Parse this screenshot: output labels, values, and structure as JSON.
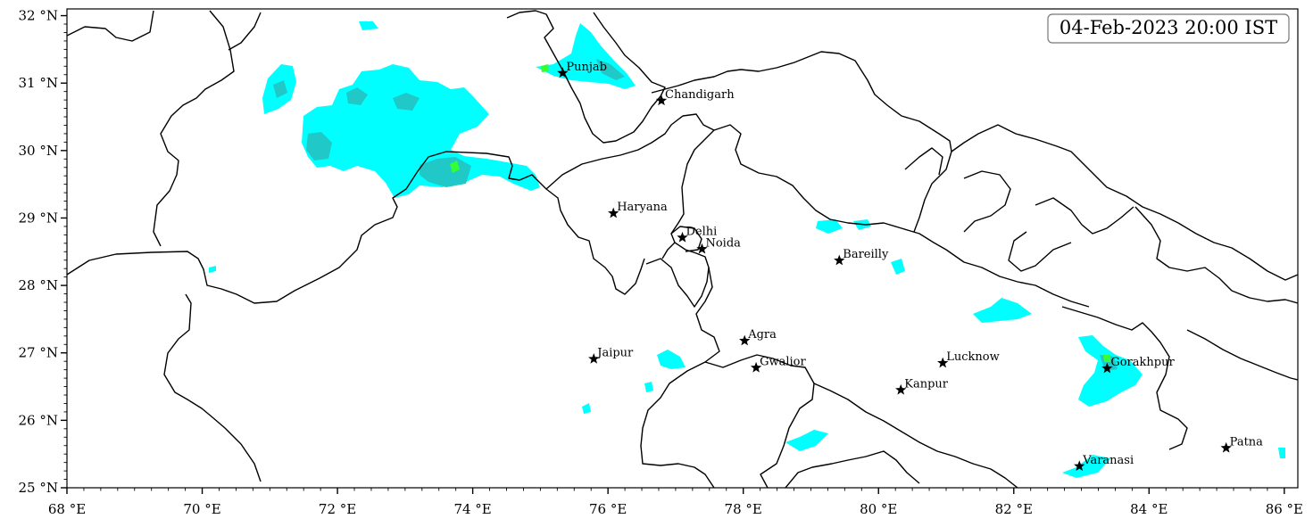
{
  "timestamp": "04-Feb-2023 20:00 IST",
  "colors": {
    "light_precip": "#00ffff",
    "moderate_precip": "#20c8c8",
    "heavy_precip": "#33ff33",
    "border": "#000000",
    "city_marker": "#000000"
  },
  "axes": {
    "lon_range": [
      68,
      86.2
    ],
    "lat_range": [
      25,
      32.1
    ],
    "x_ticks": [
      {
        "value": 68,
        "label": "68 °E"
      },
      {
        "value": 70,
        "label": "70 °E"
      },
      {
        "value": 72,
        "label": "72 °E"
      },
      {
        "value": 74,
        "label": "74 °E"
      },
      {
        "value": 76,
        "label": "76 °E"
      },
      {
        "value": 78,
        "label": "78 °E"
      },
      {
        "value": 80,
        "label": "80 °E"
      },
      {
        "value": 82,
        "label": "82 °E"
      },
      {
        "value": 84,
        "label": "84 °E"
      },
      {
        "value": 86,
        "label": "86 °E"
      }
    ],
    "y_ticks": [
      {
        "value": 25,
        "label": "25 °N"
      },
      {
        "value": 26,
        "label": "26 °N"
      },
      {
        "value": 27,
        "label": "27 °N"
      },
      {
        "value": 28,
        "label": "28 °N"
      },
      {
        "value": 29,
        "label": "29 °N"
      },
      {
        "value": 30,
        "label": "30 °N"
      },
      {
        "value": 31,
        "label": "31 °N"
      },
      {
        "value": 32,
        "label": "32 °N"
      }
    ]
  },
  "cities": [
    {
      "name": "Punjab",
      "lon": 75.33,
      "lat": 31.15
    },
    {
      "name": "Chandigarh",
      "lon": 76.79,
      "lat": 30.74
    },
    {
      "name": "Haryana",
      "lon": 76.08,
      "lat": 29.07
    },
    {
      "name": "Delhi",
      "lon": 77.1,
      "lat": 28.71
    },
    {
      "name": "Noida",
      "lon": 77.39,
      "lat": 28.54
    },
    {
      "name": "Bareilly",
      "lon": 79.42,
      "lat": 28.37
    },
    {
      "name": "Agra",
      "lon": 78.02,
      "lat": 27.18
    },
    {
      "name": "Jaipur",
      "lon": 75.79,
      "lat": 26.91
    },
    {
      "name": "Gwalior",
      "lon": 78.19,
      "lat": 26.78
    },
    {
      "name": "Lucknow",
      "lon": 80.95,
      "lat": 26.85
    },
    {
      "name": "Gorakhpur",
      "lon": 83.38,
      "lat": 26.77
    },
    {
      "name": "Kanpur",
      "lon": 80.33,
      "lat": 26.45
    },
    {
      "name": "Patna",
      "lon": 85.14,
      "lat": 25.59
    },
    {
      "name": "Varanasi",
      "lon": 82.97,
      "lat": 25.32
    }
  ]
}
